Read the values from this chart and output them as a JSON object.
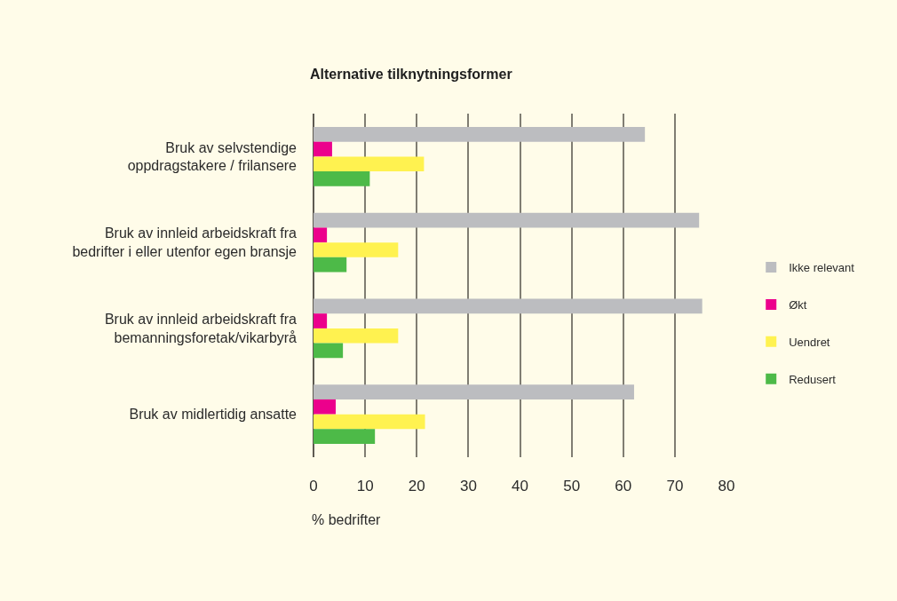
{
  "chart_data": {
    "type": "bar",
    "orientation": "horizontal",
    "title": "Alternative tilknytningsformer",
    "xlabel": "% bedrifter",
    "categories": [
      "Bruk av selvstendige\noppdragstakere / frilansere",
      "Bruk av innleid arbeidskraft fra\nbedrifter i eller utenfor egen bransje",
      "Bruk av innleid arbeidskraft fra\nbemanningsforetak/vikarbyrå",
      "Bruk av midlertidig ansatte"
    ],
    "series": [
      {
        "name": "Ikke relevant",
        "color": "#bcbdc0",
        "values": [
          64.2,
          74.7,
          75.3,
          62.1
        ]
      },
      {
        "name": "Økt",
        "color": "#ec008c",
        "values": [
          3.6,
          2.6,
          2.6,
          4.3
        ]
      },
      {
        "name": "Uendret",
        "color": "#fff250",
        "values": [
          21.4,
          16.4,
          16.4,
          21.6
        ]
      },
      {
        "name": "Redusert",
        "color": "#4dba48",
        "values": [
          10.9,
          6.4,
          5.7,
          11.9
        ]
      }
    ],
    "xlim": [
      0,
      80
    ],
    "xticks": [
      0,
      10,
      20,
      30,
      40,
      50,
      60,
      70,
      80
    ],
    "grid": "x",
    "legend": "right"
  }
}
